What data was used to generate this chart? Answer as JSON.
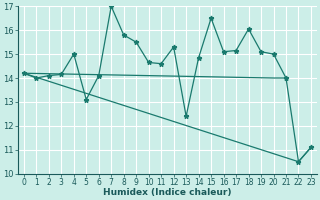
{
  "xlabel": "Humidex (Indice chaleur)",
  "bg_color": "#cceee8",
  "grid_color": "#ffffff",
  "line_color": "#1a7a6e",
  "xlim": [
    -0.5,
    23.5
  ],
  "ylim": [
    10,
    17
  ],
  "xticks": [
    0,
    1,
    2,
    3,
    4,
    5,
    6,
    7,
    8,
    9,
    10,
    11,
    12,
    13,
    14,
    15,
    16,
    17,
    18,
    19,
    20,
    21,
    22,
    23
  ],
  "yticks": [
    10,
    11,
    12,
    13,
    14,
    15,
    16,
    17
  ],
  "series1_x": [
    0,
    1,
    2,
    3,
    4,
    5,
    6,
    7,
    8,
    9,
    10,
    11,
    12,
    13,
    14,
    15,
    16,
    17,
    18,
    19,
    20,
    21,
    22,
    23
  ],
  "series1_y": [
    14.2,
    14.0,
    14.1,
    14.15,
    15.0,
    13.1,
    14.1,
    17.0,
    15.8,
    15.5,
    14.65,
    14.6,
    15.3,
    12.4,
    14.85,
    16.5,
    15.1,
    15.15,
    16.05,
    15.1,
    15.0,
    14.0,
    10.5,
    11.1
  ],
  "series2_x": [
    0,
    22,
    23
  ],
  "series2_y": [
    14.2,
    10.5,
    11.1
  ],
  "series3_x": [
    0,
    20,
    21
  ],
  "series3_y": [
    14.2,
    14.0,
    14.0
  ],
  "xlabel_fontsize": 6.5,
  "tick_fontsize": 5.5
}
